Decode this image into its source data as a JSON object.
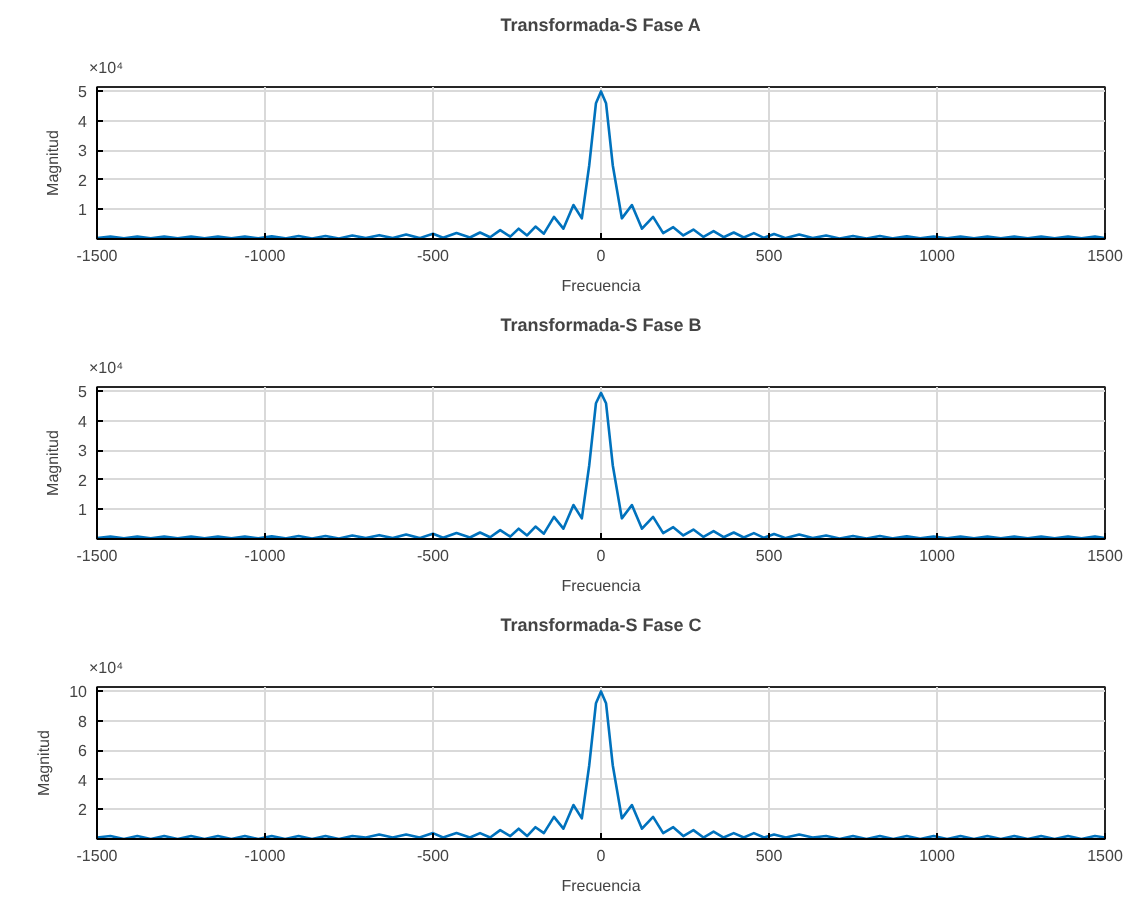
{
  "chart_data": [
    {
      "type": "line",
      "title": "Transformada-S Fase A",
      "xlabel": "Frecuencia",
      "ylabel": "Magnitud",
      "annotations": [
        "×10⁴"
      ],
      "grid": true,
      "xlim": [
        -1500,
        1500
      ],
      "ylim": [
        0,
        5.15
      ],
      "xticks": [
        -1500,
        -1000,
        -500,
        0,
        500,
        1000,
        1500
      ],
      "yticks": [
        1,
        2,
        3,
        4,
        5
      ],
      "x": [
        -1500,
        -1460,
        -1420,
        -1380,
        -1340,
        -1300,
        -1260,
        -1220,
        -1180,
        -1140,
        -1100,
        -1060,
        -1020,
        -980,
        -940,
        -900,
        -860,
        -820,
        -780,
        -740,
        -700,
        -660,
        -620,
        -580,
        -540,
        -500,
        -470,
        -430,
        -390,
        -360,
        -330,
        -300,
        -270,
        -245,
        -220,
        -195,
        -170,
        -140,
        -112,
        -82,
        -57,
        -35,
        -15,
        0,
        15,
        35,
        62,
        92,
        122,
        155,
        185,
        215,
        245,
        275,
        305,
        335,
        365,
        395,
        425,
        455,
        485,
        515,
        550,
        590,
        630,
        670,
        710,
        750,
        790,
        830,
        870,
        910,
        950,
        990,
        1030,
        1070,
        1110,
        1150,
        1190,
        1230,
        1270,
        1310,
        1350,
        1390,
        1430,
        1470,
        1500
      ],
      "series": [
        {
          "color": "#0072bd",
          "values": [
            0.03,
            0.08,
            0.02,
            0.08,
            0.02,
            0.08,
            0.02,
            0.08,
            0.02,
            0.08,
            0.02,
            0.08,
            0.02,
            0.09,
            0.02,
            0.1,
            0.02,
            0.1,
            0.02,
            0.12,
            0.03,
            0.13,
            0.03,
            0.15,
            0.03,
            0.18,
            0.04,
            0.2,
            0.05,
            0.22,
            0.06,
            0.3,
            0.08,
            0.35,
            0.12,
            0.42,
            0.18,
            0.75,
            0.35,
            1.15,
            0.7,
            2.5,
            4.6,
            5.0,
            4.6,
            2.5,
            0.7,
            1.15,
            0.35,
            0.75,
            0.2,
            0.4,
            0.12,
            0.32,
            0.07,
            0.27,
            0.06,
            0.22,
            0.05,
            0.2,
            0.04,
            0.17,
            0.03,
            0.15,
            0.03,
            0.12,
            0.02,
            0.1,
            0.02,
            0.1,
            0.02,
            0.09,
            0.02,
            0.08,
            0.02,
            0.08,
            0.02,
            0.08,
            0.02,
            0.08,
            0.02,
            0.08,
            0.02,
            0.08,
            0.02,
            0.08,
            0.03
          ]
        }
      ]
    },
    {
      "type": "line",
      "title": "Transformada-S Fase B",
      "xlabel": "Frecuencia",
      "ylabel": "Magnitud",
      "annotations": [
        "×10⁴"
      ],
      "grid": true,
      "xlim": [
        -1500,
        1500
      ],
      "ylim": [
        0,
        5.15
      ],
      "xticks": [
        -1500,
        -1000,
        -500,
        0,
        500,
        1000,
        1500
      ],
      "yticks": [
        1,
        2,
        3,
        4,
        5
      ],
      "x": [
        -1500,
        -1460,
        -1420,
        -1380,
        -1340,
        -1300,
        -1260,
        -1220,
        -1180,
        -1140,
        -1100,
        -1060,
        -1020,
        -980,
        -940,
        -900,
        -860,
        -820,
        -780,
        -740,
        -700,
        -660,
        -620,
        -580,
        -540,
        -500,
        -470,
        -430,
        -390,
        -360,
        -330,
        -300,
        -270,
        -245,
        -220,
        -195,
        -170,
        -140,
        -112,
        -82,
        -57,
        -35,
        -15,
        0,
        15,
        35,
        62,
        92,
        122,
        155,
        185,
        215,
        245,
        275,
        305,
        335,
        365,
        395,
        425,
        455,
        485,
        515,
        550,
        590,
        630,
        670,
        710,
        750,
        790,
        830,
        870,
        910,
        950,
        990,
        1030,
        1070,
        1110,
        1150,
        1190,
        1230,
        1270,
        1310,
        1350,
        1390,
        1430,
        1470,
        1500
      ],
      "series": [
        {
          "color": "#0072bd",
          "values": [
            0.03,
            0.08,
            0.02,
            0.08,
            0.02,
            0.08,
            0.02,
            0.08,
            0.02,
            0.08,
            0.02,
            0.08,
            0.02,
            0.09,
            0.02,
            0.1,
            0.02,
            0.1,
            0.02,
            0.12,
            0.03,
            0.13,
            0.03,
            0.15,
            0.03,
            0.18,
            0.04,
            0.2,
            0.05,
            0.22,
            0.06,
            0.3,
            0.08,
            0.35,
            0.12,
            0.42,
            0.18,
            0.75,
            0.35,
            1.15,
            0.7,
            2.5,
            4.6,
            4.95,
            4.6,
            2.5,
            0.7,
            1.15,
            0.35,
            0.75,
            0.2,
            0.4,
            0.12,
            0.32,
            0.07,
            0.27,
            0.06,
            0.22,
            0.05,
            0.2,
            0.04,
            0.17,
            0.03,
            0.15,
            0.03,
            0.12,
            0.02,
            0.1,
            0.02,
            0.1,
            0.02,
            0.09,
            0.02,
            0.08,
            0.02,
            0.08,
            0.02,
            0.08,
            0.02,
            0.08,
            0.02,
            0.08,
            0.02,
            0.08,
            0.02,
            0.08,
            0.03
          ]
        }
      ]
    },
    {
      "type": "line",
      "title": "Transformada-S Fase C",
      "xlabel": "Frecuencia",
      "ylabel": "Magnitud",
      "annotations": [
        "×10⁴"
      ],
      "grid": true,
      "xlim": [
        -1500,
        1500
      ],
      "ylim": [
        0,
        10.3
      ],
      "xticks": [
        -1500,
        -1000,
        -500,
        0,
        500,
        1000,
        1500
      ],
      "yticks": [
        2,
        4,
        6,
        8,
        10
      ],
      "x": [
        -1500,
        -1460,
        -1420,
        -1380,
        -1340,
        -1300,
        -1260,
        -1220,
        -1180,
        -1140,
        -1100,
        -1060,
        -1020,
        -980,
        -940,
        -900,
        -860,
        -820,
        -780,
        -740,
        -700,
        -660,
        -620,
        -580,
        -540,
        -500,
        -470,
        -430,
        -390,
        -360,
        -330,
        -300,
        -270,
        -245,
        -220,
        -195,
        -170,
        -140,
        -112,
        -82,
        -57,
        -35,
        -15,
        0,
        15,
        35,
        62,
        92,
        122,
        155,
        185,
        215,
        245,
        275,
        305,
        335,
        365,
        395,
        425,
        455,
        485,
        515,
        550,
        590,
        630,
        670,
        710,
        750,
        790,
        830,
        870,
        910,
        950,
        990,
        1030,
        1070,
        1110,
        1150,
        1190,
        1230,
        1270,
        1310,
        1350,
        1390,
        1430,
        1470,
        1500
      ],
      "series": [
        {
          "color": "#0072bd",
          "values": [
            0.1,
            0.2,
            0.0,
            0.2,
            0.0,
            0.2,
            0.0,
            0.2,
            0.0,
            0.2,
            0.0,
            0.2,
            0.0,
            0.2,
            0.0,
            0.2,
            0.0,
            0.2,
            0.0,
            0.2,
            0.1,
            0.3,
            0.1,
            0.3,
            0.1,
            0.4,
            0.1,
            0.4,
            0.1,
            0.4,
            0.1,
            0.6,
            0.2,
            0.7,
            0.2,
            0.8,
            0.4,
            1.5,
            0.7,
            2.3,
            1.4,
            5.0,
            9.2,
            10.0,
            9.2,
            5.0,
            1.4,
            2.3,
            0.7,
            1.5,
            0.4,
            0.8,
            0.2,
            0.6,
            0.1,
            0.5,
            0.1,
            0.4,
            0.1,
            0.4,
            0.1,
            0.3,
            0.1,
            0.3,
            0.1,
            0.2,
            0.0,
            0.2,
            0.0,
            0.2,
            0.0,
            0.2,
            0.0,
            0.2,
            0.0,
            0.2,
            0.0,
            0.2,
            0.0,
            0.2,
            0.0,
            0.2,
            0.0,
            0.2,
            0.0,
            0.2,
            0.1
          ]
        }
      ]
    }
  ]
}
